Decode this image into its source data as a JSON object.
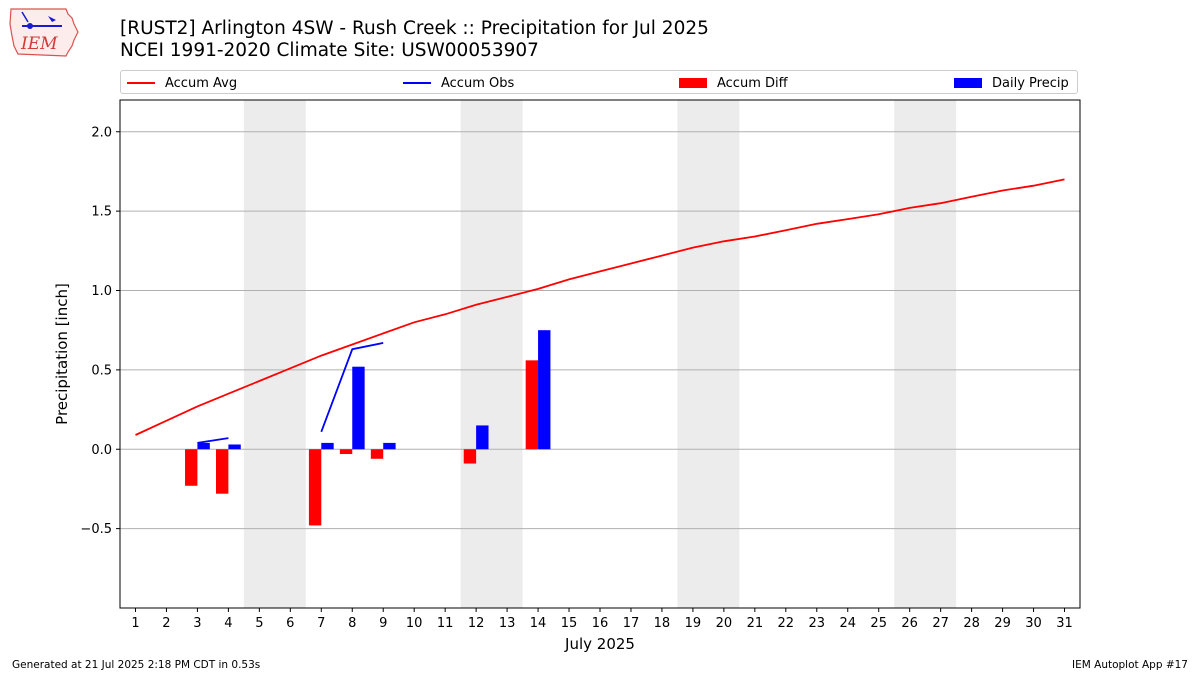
{
  "header": {
    "title_line1": "[RUST2] Arlington 4SW - Rush Creek :: Precipitation for Jul 2025",
    "title_line2": "NCEI 1991-2020 Climate Site: USW00053907",
    "logo_text": "IEM"
  },
  "legend": {
    "items": [
      {
        "label": "Accum Avg",
        "color": "#ff0000",
        "kind": "line"
      },
      {
        "label": "Accum Obs",
        "color": "#0000ff",
        "kind": "line"
      },
      {
        "label": "Accum Diff",
        "color": "#ff0000",
        "kind": "bar"
      },
      {
        "label": "Daily Precip",
        "color": "#0000ff",
        "kind": "bar"
      }
    ]
  },
  "footer": {
    "left": "Generated at 21 Jul 2025 2:18 PM CDT in 0.53s",
    "right": "IEM Autoplot App #17"
  },
  "chart_data": {
    "type": "bar",
    "xlabel": "July 2025",
    "ylabel": "Precipitation [inch]",
    "xlim": [
      0.5,
      31.5
    ],
    "ylim": [
      -1.0,
      2.2
    ],
    "yticks": [
      -0.5,
      0.0,
      0.5,
      1.0,
      1.5,
      2.0
    ],
    "ytick_labels": [
      "−0.5",
      "0.0",
      "0.5",
      "1.0",
      "1.5",
      "2.0"
    ],
    "xticks": [
      1,
      2,
      3,
      4,
      5,
      6,
      7,
      8,
      9,
      10,
      11,
      12,
      13,
      14,
      15,
      16,
      17,
      18,
      19,
      20,
      21,
      22,
      23,
      24,
      25,
      26,
      27,
      28,
      29,
      30,
      31
    ],
    "grid": "horizontal",
    "weekend_bands": [
      [
        5,
        6
      ],
      [
        12,
        13
      ],
      [
        19,
        20
      ],
      [
        26,
        27
      ]
    ],
    "accum_avg": {
      "name": "Accum Avg",
      "color": "#ff0000",
      "x": [
        1,
        2,
        3,
        4,
        5,
        6,
        7,
        8,
        9,
        10,
        11,
        12,
        13,
        14,
        15,
        16,
        17,
        18,
        19,
        20,
        21,
        22,
        23,
        24,
        25,
        26,
        27,
        28,
        29,
        30,
        31
      ],
      "values": [
        0.09,
        0.18,
        0.27,
        0.35,
        0.43,
        0.51,
        0.59,
        0.66,
        0.73,
        0.8,
        0.85,
        0.91,
        0.96,
        1.01,
        1.07,
        1.12,
        1.17,
        1.22,
        1.27,
        1.31,
        1.34,
        1.38,
        1.42,
        1.45,
        1.48,
        1.52,
        1.55,
        1.59,
        1.63,
        1.66,
        1.7
      ]
    },
    "accum_obs": {
      "name": "Accum Obs",
      "color": "#0000ff",
      "segments": [
        {
          "x": [
            3,
            4
          ],
          "values": [
            0.04,
            0.07
          ]
        },
        {
          "x": [
            7,
            8,
            9
          ],
          "values": [
            0.11,
            0.63,
            0.67
          ]
        }
      ]
    },
    "accum_diff": {
      "name": "Accum Diff",
      "color": "#ff0000",
      "x": [
        3,
        4,
        7,
        8,
        9,
        12,
        14
      ],
      "values": [
        -0.23,
        -0.28,
        -0.48,
        -0.03,
        -0.06,
        -0.09,
        0.56
      ]
    },
    "daily_precip": {
      "name": "Daily Precip",
      "color": "#0000ff",
      "x": [
        3,
        4,
        7,
        8,
        9,
        12,
        14
      ],
      "values": [
        0.04,
        0.03,
        0.04,
        0.52,
        0.04,
        0.15,
        0.75
      ]
    }
  }
}
